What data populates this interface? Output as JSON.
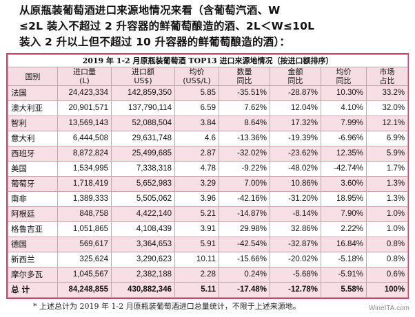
{
  "heading": {
    "line1": "从原瓶装葡萄酒进口来源地情况来看（含葡萄汽酒、W",
    "line2": "≤2L 装入不超过 2 升容器的鲜葡萄酿造的酒、2L＜W≤10L",
    "line3": "装入 2 升以上但不超过 10 升容器的鲜葡萄酿造的酒）："
  },
  "table": {
    "title": "2019 年 1-2 月原瓶装葡萄酒 TOP13 进口来源地情况（按进口额排序）",
    "headers": [
      {
        "top": "国别",
        "bottom": ""
      },
      {
        "top": "进口量",
        "bottom": "(L)"
      },
      {
        "top": "进口额",
        "bottom": "US$)"
      },
      {
        "top": "均价",
        "bottom": "(US$/L)"
      },
      {
        "top": "数量",
        "bottom": "同比"
      },
      {
        "top": "金额",
        "bottom": "同比"
      },
      {
        "top": "均价",
        "bottom": "同比"
      },
      {
        "top": "市场",
        "bottom": "占比"
      }
    ],
    "rows": [
      [
        "法国",
        "24,423,334",
        "142,859,350",
        "5.85",
        "-35.51%",
        "-28.87%",
        "10.30%",
        "33.2%"
      ],
      [
        "澳大利亚",
        "20,901,571",
        "137,790,114",
        "6.59",
        "7.62%",
        "12.04%",
        "4.10%",
        "32.0%"
      ],
      [
        "智利",
        "13,569,143",
        "52,088,504",
        "3.84",
        "8.64%",
        "17.32%",
        "7.99%",
        "12.1%"
      ],
      [
        "意大利",
        "6,444,508",
        "29,631,748",
        "4.6",
        "-13.36%",
        "-19.39%",
        "-6.96%",
        "6.9%"
      ],
      [
        "西班牙",
        "8,872,824",
        "25,499,685",
        "2.87",
        "-32.02%",
        "-23.62%",
        "12.35%",
        "5.9%"
      ],
      [
        "美国",
        "1,534,995",
        "7,338,318",
        "4.78",
        "-9.22%",
        "-48.02%",
        "-42.74%",
        "1.7%"
      ],
      [
        "葡萄牙",
        "1,718,419",
        "5,652,983",
        "3.29",
        "7.00%",
        "10.86%",
        "3.60%",
        "1.3%"
      ],
      [
        "南非",
        "1,389,333",
        "5,505,062",
        "3.96",
        "-42.16%",
        "-31.20%",
        "18.95%",
        "1.3%"
      ],
      [
        "阿根廷",
        "848,758",
        "4,422,140",
        "5.21",
        "-14.87%",
        "-8.14%",
        "7.90%",
        "1.0%"
      ],
      [
        "格鲁吉亚",
        "1,051,865",
        "4,108,439",
        "3.91",
        "29.98%",
        "32.86%",
        "2.22%",
        "1.0%"
      ],
      [
        "德国",
        "569,617",
        "3,364,653",
        "5.91",
        "-42.54%",
        "-32.87%",
        "16.84%",
        "0.8%"
      ],
      [
        "新西兰",
        "325,624",
        "3,290,623",
        "10.11",
        "-15.66%",
        "-20.02%",
        "-5.18%",
        "0.8%"
      ],
      [
        "摩尔多瓦",
        "1,045,567",
        "2,382,188",
        "2.28",
        "0.24%",
        "-5.68%",
        "-5.91%",
        "0.6%"
      ]
    ],
    "total": [
      "总 计",
      "84,248,855",
      "430,882,346",
      "5.11",
      "-17.48%",
      "-12.78%",
      "5.58%",
      "100%"
    ]
  },
  "footnote": "* 上述总计为 2019 年 1-2 月原瓶装葡萄酒进口总量统计，不限于上述来源地。",
  "watermark": "WineITA.com"
}
